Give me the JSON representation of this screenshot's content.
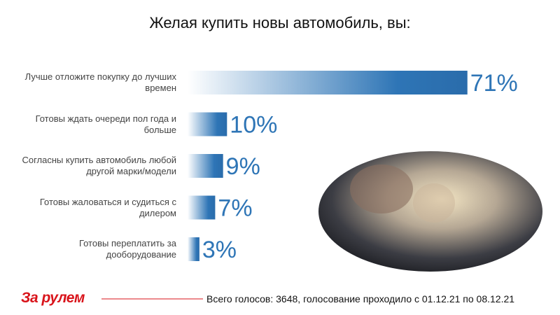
{
  "chart_data": {
    "type": "bar",
    "orientation": "horizontal",
    "title": "Желая купить новы автомобиль, вы:",
    "categories": [
      "Лучше отложите покупку до лучших времен",
      "Готовы ждать очереди пол года и больше",
      "Согласны купить автомобиль любой другой марки/модели",
      "Готовы жаловаться и судиться с дилером",
      "Готовы переплатить за дооборудование"
    ],
    "values": [
      71,
      10,
      9,
      7,
      3
    ],
    "value_labels": [
      "71%",
      "10%",
      "9%",
      "7%",
      "3%"
    ],
    "color": "#2e75b6",
    "logo": "За рулем",
    "footnote": "Всего голосов: 3648, голосование проходило с 01.12.21 по 08.12.21"
  }
}
